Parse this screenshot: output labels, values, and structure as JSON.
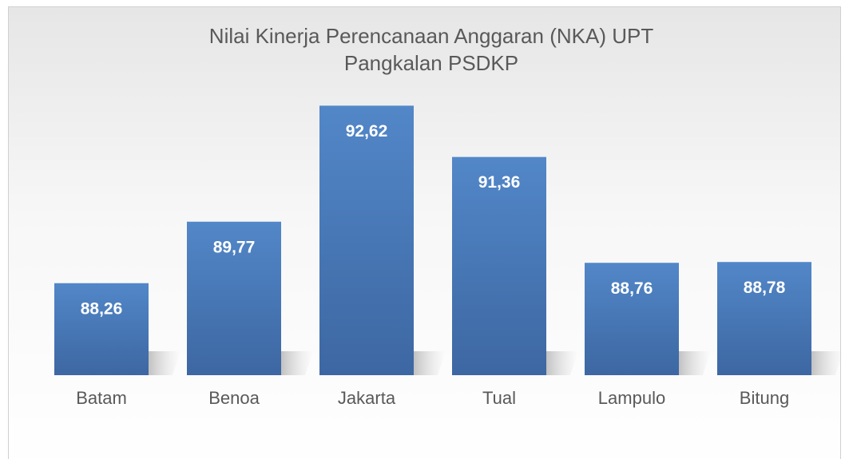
{
  "chart_data": {
    "type": "bar",
    "title": "Nilai Kinerja Perencanaan Anggaran (NKA) UPT",
    "subtitle": "Pangkalan PSDKP",
    "categories": [
      "Batam",
      "Benoa",
      "Jakarta",
      "Tual",
      "Lampulo",
      "Bitung"
    ],
    "values": [
      88.26,
      89.77,
      92.62,
      91.36,
      88.76,
      88.78
    ],
    "value_labels": [
      "88,26",
      "89,77",
      "92,62",
      "91,36",
      "88,76",
      "88,78"
    ],
    "color": "#4a7dbd",
    "ylim": [
      86,
      93
    ]
  }
}
